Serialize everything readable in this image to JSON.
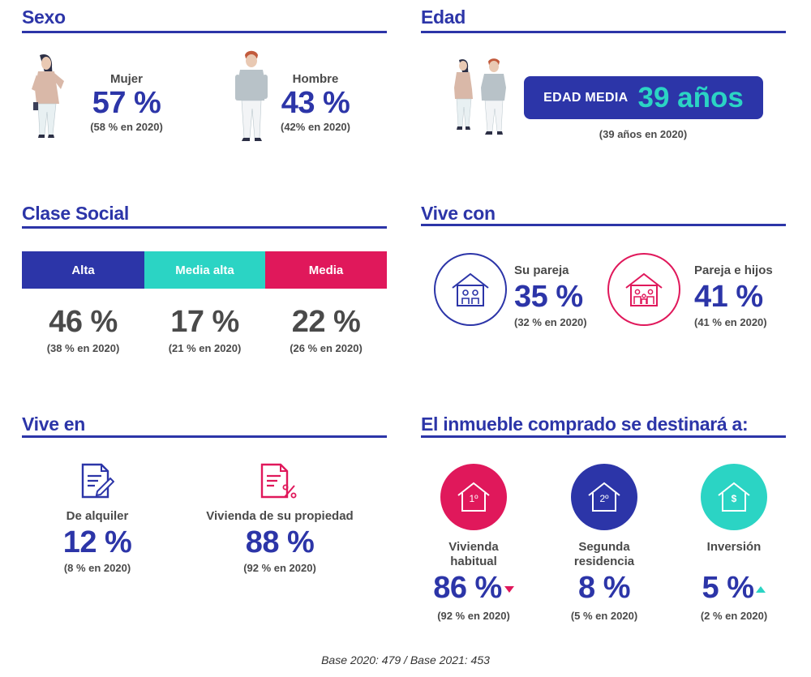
{
  "colors": {
    "blue": "#2c35a8",
    "teal": "#2bd4c4",
    "pink": "#e0185b",
    "gray": "#4a4a4a"
  },
  "sexo": {
    "title": "Sexo",
    "mujer": {
      "label": "Mujer",
      "value": "57 %",
      "prev": "(58 % en 2020)"
    },
    "hombre": {
      "label": "Hombre",
      "value": "43 %",
      "prev": "(42% en 2020)"
    }
  },
  "edad": {
    "title": "Edad",
    "badge_label": "EDAD MEDIA",
    "badge_value": "39 años",
    "prev": "(39 años en 2020)"
  },
  "clase_social": {
    "title": "Clase Social",
    "segments": [
      {
        "label": "Alta",
        "value": "46 %",
        "prev": "(38 % en 2020)",
        "color": "#2c35a8"
      },
      {
        "label": "Media alta",
        "value": "17 %",
        "prev": "(21 % en 2020)",
        "color": "#2bd4c4"
      },
      {
        "label": "Media",
        "value": "22 %",
        "prev": "(26 % en 2020)",
        "color": "#e0185b"
      }
    ]
  },
  "vive_con": {
    "title": "Vive con",
    "items": [
      {
        "label": "Su pareja",
        "value": "35 %",
        "prev": "(32 % en 2020)",
        "icon": "house-couple-icon"
      },
      {
        "label": "Pareja e hijos",
        "value": "41 %",
        "prev": "(41 % en 2020)",
        "icon": "house-family-icon"
      }
    ]
  },
  "vive_en": {
    "title": "Vive en",
    "items": [
      {
        "label": "De alquiler",
        "value": "12 %",
        "prev": "(8 % en 2020)",
        "icon": "rental-document-icon"
      },
      {
        "label": "Vivienda de su propiedad",
        "value": "88 %",
        "prev": "(92 % en 2020)",
        "icon": "property-document-icon"
      }
    ]
  },
  "destino": {
    "title": "El inmueble comprado se destinará a:",
    "items": [
      {
        "label_1": "Vivienda",
        "label_2": "habitual",
        "value": "86 %",
        "prev": "(92 % en 2020)",
        "house_text": "1º",
        "trend": "down"
      },
      {
        "label_1": "Segunda",
        "label_2": "residencia",
        "value": "8 %",
        "prev": "(5 % en 2020)",
        "house_text": "2º",
        "trend": "none"
      },
      {
        "label_1": "Inversión",
        "label_2": "",
        "value": "5 %",
        "prev": "(2 % en 2020)",
        "house_text": "$",
        "trend": "up"
      }
    ]
  },
  "footer": {
    "base": "Base 2020: 479 / Base 2021: 453"
  }
}
